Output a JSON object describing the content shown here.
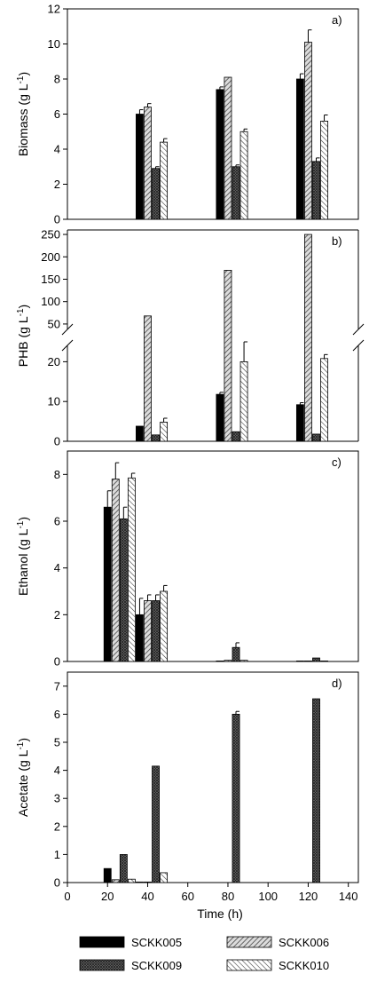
{
  "xaxis": {
    "label": "Time (h)",
    "ticks": [
      0,
      20,
      40,
      60,
      80,
      100,
      120,
      140
    ],
    "range": [
      0,
      145
    ]
  },
  "legend": [
    "SCKK005",
    "SCKK006",
    "SCKK009",
    "SCKK010"
  ],
  "colors": {
    "SCKK005": "#000000",
    "SCKK006": "#9a9a9a",
    "SCKK009": "#555555",
    "SCKK010": "#ffffff"
  },
  "chart_data": [
    {
      "type": "bar",
      "panel_label": "a)",
      "ylabel": "Biomass (g L",
      "ylabel_sup": "-1",
      "ylabel_close": ")",
      "ylim": [
        0,
        12
      ],
      "yticks": [
        0,
        2,
        4,
        6,
        8,
        10,
        12
      ],
      "series": [
        {
          "name": "SCKK005",
          "x": [
            36,
            76,
            116
          ],
          "values": [
            6.0,
            7.4,
            8.0
          ],
          "err": [
            0.25,
            0.15,
            0.3
          ]
        },
        {
          "name": "SCKK006",
          "x": [
            40,
            80,
            120
          ],
          "values": [
            6.4,
            8.1,
            10.1
          ],
          "err": [
            0.2,
            0.0,
            0.7
          ]
        },
        {
          "name": "SCKK009",
          "x": [
            44,
            84,
            124
          ],
          "values": [
            2.9,
            3.0,
            3.3
          ],
          "err": [
            0.1,
            0.1,
            0.2
          ]
        },
        {
          "name": "SCKK010",
          "x": [
            48,
            88,
            128
          ],
          "values": [
            4.4,
            5.0,
            5.6
          ],
          "err": [
            0.2,
            0.15,
            0.35
          ]
        }
      ]
    },
    {
      "type": "bar",
      "panel_label": "b)",
      "ylabel": "PHB (g L",
      "ylabel_sup": "-1",
      "ylabel_close": ")",
      "broken_axis": true,
      "lower_range": [
        0,
        25
      ],
      "upper_range": [
        30,
        260
      ],
      "yticks_lower": [
        0,
        10,
        20
      ],
      "yticks_upper": [
        50,
        100,
        150,
        200,
        250
      ],
      "series": [
        {
          "name": "SCKK005",
          "x": [
            36,
            76,
            116
          ],
          "values": [
            3.8,
            11.8,
            9.2
          ],
          "err": [
            0.0,
            0.5,
            0.5
          ]
        },
        {
          "name": "SCKK006",
          "x": [
            40,
            80,
            120
          ],
          "values": [
            68,
            170,
            250
          ],
          "err": [
            0,
            0,
            0
          ]
        },
        {
          "name": "SCKK009",
          "x": [
            44,
            84,
            124
          ],
          "values": [
            1.6,
            2.4,
            1.8
          ],
          "err": [
            0.0,
            0.0,
            0.0
          ]
        },
        {
          "name": "SCKK010",
          "x": [
            48,
            88,
            128
          ],
          "values": [
            4.8,
            20.0,
            20.8
          ],
          "err": [
            1.0,
            5.0,
            1.0
          ]
        }
      ]
    },
    {
      "type": "bar",
      "panel_label": "c)",
      "ylabel": "Ethanol (g L",
      "ylabel_sup": "-1",
      "ylabel_close": ")",
      "ylim": [
        0,
        9
      ],
      "yticks": [
        0,
        2,
        4,
        6,
        8
      ],
      "series": [
        {
          "name": "SCKK005",
          "x": [
            20,
            36,
            76,
            116
          ],
          "values": [
            6.6,
            2.0,
            0.0,
            0.0
          ],
          "err": [
            0.7,
            0.7,
            0,
            0
          ]
        },
        {
          "name": "SCKK006",
          "x": [
            24,
            40,
            80,
            120
          ],
          "values": [
            7.8,
            2.6,
            0.05,
            0.0
          ],
          "err": [
            0.7,
            0.25,
            0,
            0
          ]
        },
        {
          "name": "SCKK009",
          "x": [
            28,
            44,
            84,
            124
          ],
          "values": [
            6.1,
            2.6,
            0.6,
            0.15
          ],
          "err": [
            0.5,
            0.25,
            0.2,
            0
          ]
        },
        {
          "name": "SCKK010",
          "x": [
            32,
            48,
            88,
            128
          ],
          "values": [
            7.85,
            3.0,
            0.05,
            0.0
          ],
          "err": [
            0.2,
            0.25,
            0,
            0
          ]
        }
      ]
    },
    {
      "type": "bar",
      "panel_label": "d)",
      "ylabel": "Acetate (g L",
      "ylabel_sup": "-1",
      "ylabel_close": ")",
      "ylim": [
        0,
        7.5
      ],
      "yticks": [
        0,
        1,
        2,
        3,
        4,
        5,
        6,
        7
      ],
      "series": [
        {
          "name": "SCKK005",
          "x": [
            20,
            36
          ],
          "values": [
            0.5,
            0.02
          ],
          "err": [
            0,
            0
          ]
        },
        {
          "name": "SCKK006",
          "x": [
            24,
            40
          ],
          "values": [
            0.1,
            0.02
          ],
          "err": [
            0,
            0
          ]
        },
        {
          "name": "SCKK009",
          "x": [
            28,
            44,
            84,
            124
          ],
          "values": [
            1.0,
            4.15,
            6.0,
            6.55
          ],
          "err": [
            0,
            0,
            0.1,
            0
          ]
        },
        {
          "name": "SCKK010",
          "x": [
            32,
            48
          ],
          "values": [
            0.12,
            0.35
          ],
          "err": [
            0,
            0
          ]
        }
      ]
    }
  ]
}
